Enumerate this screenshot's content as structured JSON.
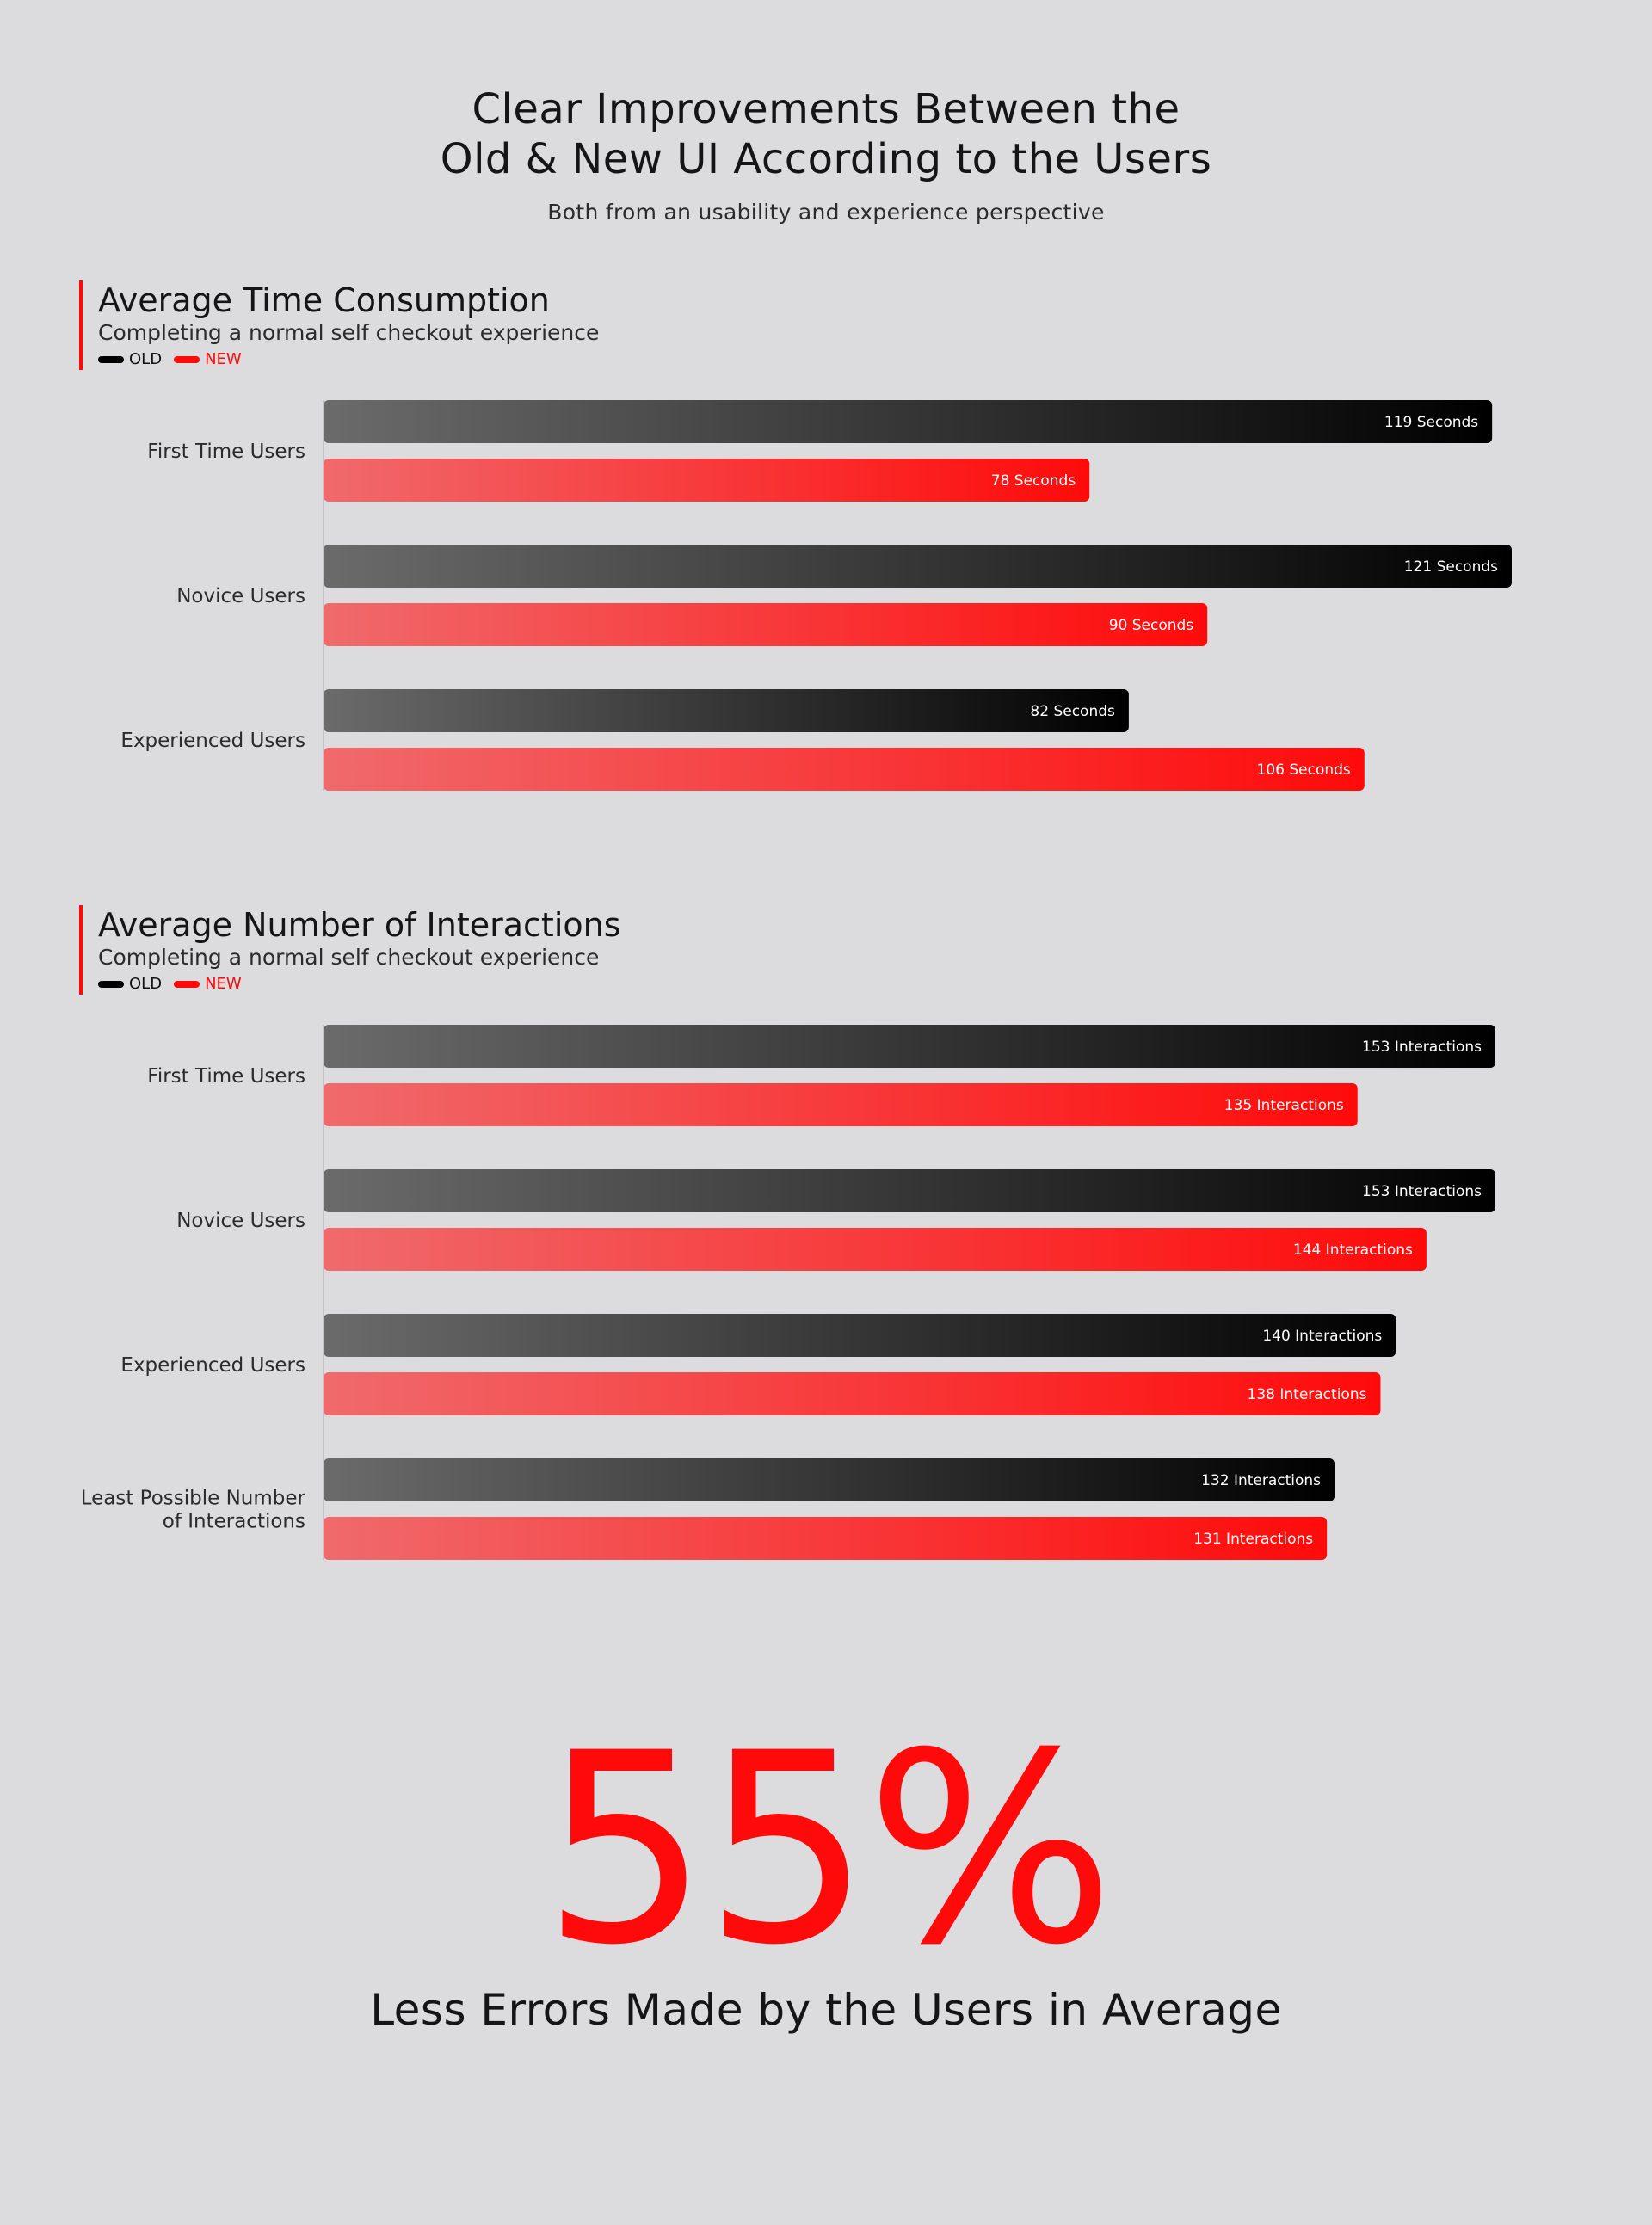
{
  "header": {
    "title_line1": "Clear Improvements Between the",
    "title_line2": "Old & New UI According to the Users",
    "subtitle": "Both from an usability and experience perspective"
  },
  "colors": {
    "background": "#dcdbdd",
    "old": "#000000",
    "new": "#ff0a0a"
  },
  "chart_data": [
    {
      "type": "bar",
      "orientation": "horizontal",
      "title": "Average Time Consumption",
      "subtitle": "Completing a normal self checkout experience",
      "legend": [
        "OLD",
        "NEW"
      ],
      "legend_placement": "top-left",
      "categories": [
        "First Time Users",
        "Novice Users",
        "Experienced Users"
      ],
      "series": [
        {
          "name": "OLD",
          "values": [
            119,
            121,
            82
          ],
          "labels": [
            "119 Seconds",
            "121 Seconds",
            "82 Seconds"
          ]
        },
        {
          "name": "NEW",
          "values": [
            78,
            90,
            106
          ],
          "labels": [
            "78 Seconds",
            "90 Seconds",
            "106 Seconds"
          ]
        }
      ],
      "grid": false
    },
    {
      "type": "bar",
      "orientation": "horizontal",
      "title": "Average Number of Interactions",
      "subtitle": "Completing a normal self checkout experience",
      "legend": [
        "OLD",
        "NEW"
      ],
      "legend_placement": "top-left",
      "categories": [
        "First Time Users",
        "Novice Users",
        "Experienced Users",
        "Least Possible Number of Interactions"
      ],
      "series": [
        {
          "name": "OLD",
          "values": [
            153,
            153,
            140,
            132
          ],
          "labels": [
            "153 Interactions",
            "153 Interactions",
            "140 Interactions",
            "132 Interactions"
          ]
        },
        {
          "name": "NEW",
          "values": [
            135,
            144,
            138,
            131
          ],
          "labels": [
            "135 Interactions",
            "144 Interactions",
            "138 Interactions",
            "131 Interactions"
          ]
        }
      ],
      "grid": false
    }
  ],
  "stat": {
    "value": "55%",
    "caption": "Less Errors Made by the Users in Average"
  }
}
